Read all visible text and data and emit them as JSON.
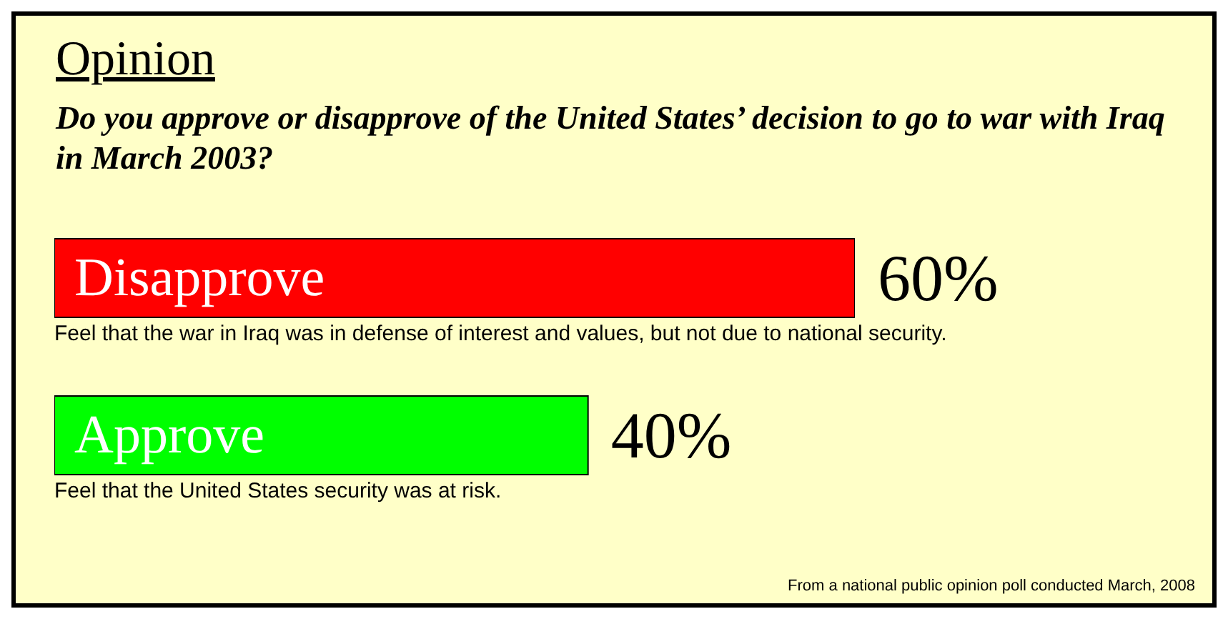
{
  "chart_data": {
    "type": "bar",
    "orientation": "horizontal",
    "title": "Opinion",
    "subtitle": "Do you approve or disapprove of the United States’ decision to go to war with Iraq in March 2003?",
    "categories": [
      "Disapprove",
      "Approve"
    ],
    "values": [
      60,
      40
    ],
    "colors": [
      "#ff0000",
      "#00ff00"
    ],
    "value_labels": [
      "60%",
      "40%"
    ],
    "annotations": [
      "Feel that the war in Iraq was in defense of interest and values, but not due to national security.",
      "Feel that the United States security was at risk.",
      "From a national public opinion poll conducted March, 2008"
    ]
  }
}
